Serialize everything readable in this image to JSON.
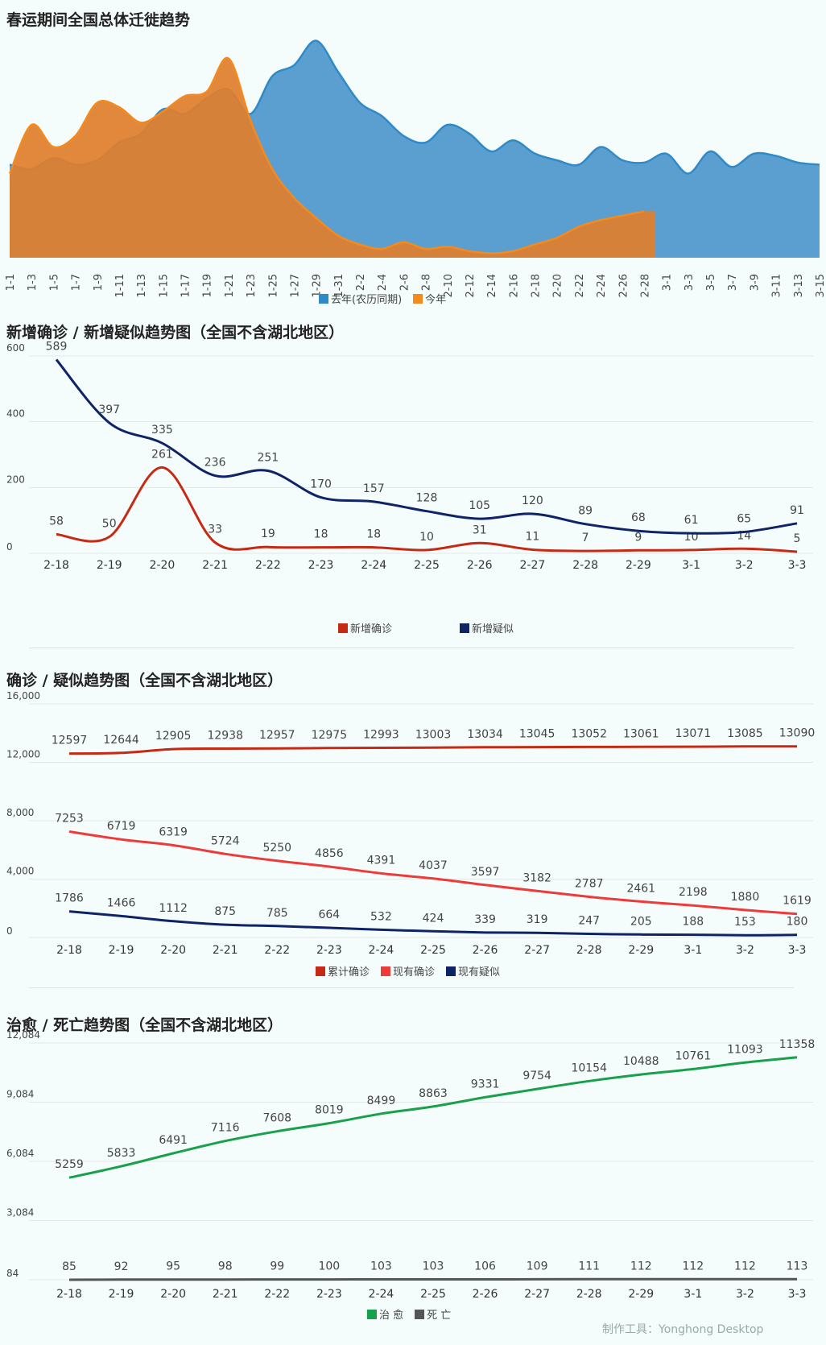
{
  "chart_data": [
    {
      "type": "area",
      "title": "春运期间全国总体迁徙趋势",
      "categories": [
        "1-1",
        "1-3",
        "1-5",
        "1-7",
        "1-9",
        "1-11",
        "1-13",
        "1-15",
        "1-17",
        "1-19",
        "1-21",
        "1-23",
        "1-25",
        "1-27",
        "1-29",
        "1-31",
        "2-2",
        "2-4",
        "2-6",
        "2-8",
        "2-10",
        "2-12",
        "2-14",
        "2-16",
        "2-18",
        "2-20",
        "2-22",
        "2-24",
        "2-26",
        "2-28",
        "3-1",
        "3-3",
        "3-5",
        "3-7",
        "3-9",
        "3-11",
        "3-13",
        "3-15"
      ],
      "ylabel": "",
      "ylim": [
        0,
        100
      ],
      "grid": false,
      "legend_position": "bottom",
      "series": [
        {
          "name": "去年(农历同期)",
          "color": "#2f8ac8",
          "values": [
            42,
            40,
            45,
            42,
            44,
            52,
            56,
            67,
            65,
            72,
            76,
            65,
            82,
            87,
            98,
            84,
            70,
            64,
            55,
            52,
            60,
            56,
            48,
            53,
            47,
            44,
            42,
            50,
            44,
            43,
            47,
            38,
            48,
            41,
            47,
            46,
            43,
            42
          ]
        },
        {
          "name": "今年",
          "color": "#f48a1e",
          "values": [
            38,
            60,
            50,
            55,
            70,
            68,
            61,
            66,
            73,
            75,
            90,
            62,
            40,
            27,
            18,
            10,
            6,
            4,
            7,
            4,
            5,
            3,
            2,
            3,
            6,
            9,
            14,
            17,
            19,
            21,
            0,
            0,
            0,
            0,
            0,
            0,
            0,
            0
          ]
        }
      ]
    },
    {
      "type": "line",
      "title": "新增确诊 / 新增疑似趋势图（全国不含湖北地区）",
      "categories": [
        "2-18",
        "2-19",
        "2-20",
        "2-21",
        "2-22",
        "2-23",
        "2-24",
        "2-25",
        "2-26",
        "2-27",
        "2-28",
        "2-29",
        "3-1",
        "3-2",
        "3-3"
      ],
      "ylim": [
        0,
        600
      ],
      "yticks": [
        "0",
        "200",
        "400",
        "600"
      ],
      "grid": true,
      "legend_position": "bottom",
      "series": [
        {
          "name": "新增确诊",
          "color": "#c72a14",
          "values": [
            58,
            50,
            261,
            33,
            19,
            18,
            18,
            10,
            31,
            11,
            7,
            9,
            10,
            14,
            5
          ]
        },
        {
          "name": "新增疑似",
          "color": "#0e2466",
          "values": [
            589,
            397,
            335,
            236,
            251,
            170,
            157,
            128,
            105,
            120,
            89,
            68,
            61,
            65,
            91
          ]
        }
      ]
    },
    {
      "type": "line",
      "title": "确诊 / 疑似趋势图（全国不含湖北地区）",
      "categories": [
        "2-18",
        "2-19",
        "2-20",
        "2-21",
        "2-22",
        "2-23",
        "2-24",
        "2-25",
        "2-26",
        "2-27",
        "2-28",
        "2-29",
        "3-1",
        "3-2",
        "3-3"
      ],
      "ylim": [
        0,
        16000
      ],
      "yticks": [
        "0",
        "4,000",
        "8,000",
        "12,000",
        "16,000"
      ],
      "grid": true,
      "legend_position": "bottom",
      "series": [
        {
          "name": "累计确诊",
          "color": "#c72a14",
          "values": [
            12597,
            12644,
            12905,
            12938,
            12957,
            12975,
            12993,
            13003,
            13034,
            13045,
            13052,
            13061,
            13071,
            13085,
            13090
          ]
        },
        {
          "name": "现有确诊",
          "color": "#ef3a3a",
          "values": [
            7253,
            6719,
            6319,
            5724,
            5250,
            4856,
            4391,
            4037,
            3597,
            3182,
            2787,
            2461,
            2198,
            1880,
            1619
          ]
        },
        {
          "name": "现有疑似",
          "color": "#0e2466",
          "values": [
            1786,
            1466,
            1112,
            875,
            785,
            664,
            532,
            424,
            339,
            319,
            247,
            205,
            188,
            153,
            180
          ]
        }
      ]
    },
    {
      "type": "line",
      "title": "治愈 / 死亡趋势图（全国不含湖北地区）",
      "categories": [
        "2-18",
        "2-19",
        "2-20",
        "2-21",
        "2-22",
        "2-23",
        "2-24",
        "2-25",
        "2-26",
        "2-27",
        "2-28",
        "2-29",
        "3-1",
        "3-2",
        "3-3"
      ],
      "ylim": [
        84,
        12084
      ],
      "yticks": [
        "84",
        "3,084",
        "6,084",
        "9,084",
        "12,084"
      ],
      "grid": true,
      "legend_position": "bottom",
      "series": [
        {
          "name": "治 愈",
          "color": "#19a04a",
          "values": [
            5259,
            5833,
            6491,
            7116,
            7608,
            8019,
            8499,
            8863,
            9331,
            9754,
            10154,
            10488,
            10761,
            11093,
            11358
          ]
        },
        {
          "name": "死 亡",
          "color": "#555555",
          "values": [
            85,
            92,
            95,
            98,
            99,
            100,
            103,
            103,
            106,
            109,
            111,
            112,
            112,
            112,
            113
          ]
        }
      ]
    }
  ],
  "footer": {
    "watermark": "制作工具：Yonghong Desktop"
  }
}
